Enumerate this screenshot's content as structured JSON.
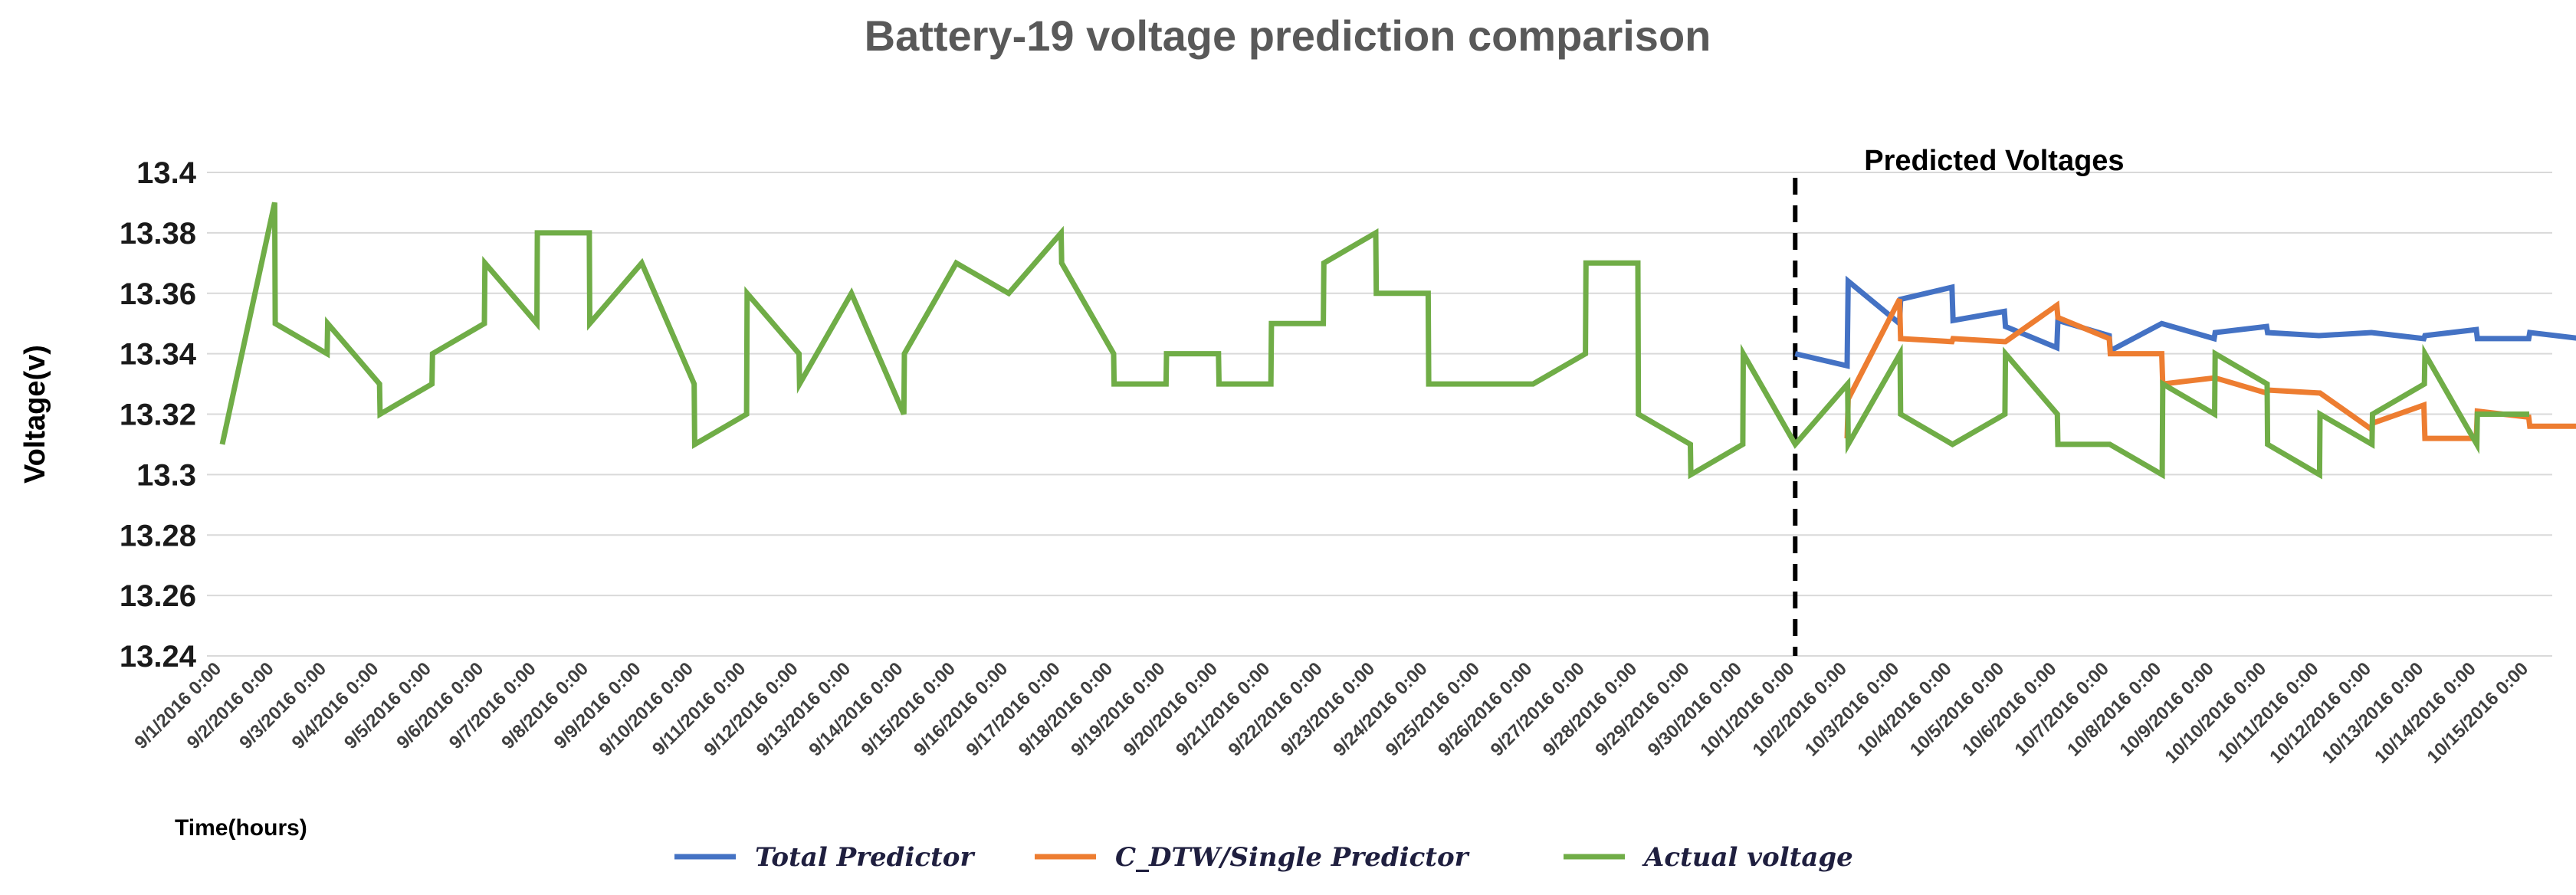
{
  "chart_data": {
    "type": "line",
    "title": "Battery-19 voltage prediction comparison",
    "ylabel": "Voltage(v)",
    "xlabel": "Time(hours)",
    "ylim": [
      13.24,
      13.4
    ],
    "yticks": [
      13.24,
      13.26,
      13.28,
      13.3,
      13.32,
      13.34,
      13.36,
      13.38,
      13.4
    ],
    "grid": true,
    "legend_position": "bottom",
    "annotation": {
      "text": "Predicted Voltages",
      "divider_x": 30
    },
    "x_tick_labels": [
      "9/1/2016 0:00",
      "9/2/2016 0:00",
      "9/3/2016 0:00",
      "9/4/2016 0:00",
      "9/5/2016 0:00",
      "9/6/2016 0:00",
      "9/7/2016 0:00",
      "9/8/2016 0:00",
      "9/9/2016 0:00",
      "9/10/2016 0:00",
      "9/11/2016 0:00",
      "9/12/2016 0:00",
      "9/13/2016 0:00",
      "9/14/2016 0:00",
      "9/15/2016 0:00",
      "9/16/2016 0:00",
      "9/17/2016 0:00",
      "9/18/2016 0:00",
      "9/19/2016 0:00",
      "9/20/2016 0:00",
      "9/21/2016 0:00",
      "9/22/2016 0:00",
      "9/23/2016 0:00",
      "9/24/2016 0:00",
      "9/25/2016 0:00",
      "9/26/2016 0:00",
      "9/27/2016 0:00",
      "9/28/2016 0:00",
      "9/29/2016 0:00",
      "9/30/2016 0:00",
      "10/1/2016 0:00",
      "10/2/2016 0:00",
      "10/3/2016 0:00",
      "10/4/2016 0:00",
      "10/5/2016 0:00",
      "10/6/2016 0:00",
      "10/7/2016 0:00",
      "10/8/2016 0:00",
      "10/9/2016 0:00",
      "10/10/2016 0:00",
      "10/11/2016 0:00",
      "10/12/2016 0:00",
      "10/13/2016 0:00",
      "10/14/2016 0:00",
      "10/15/2016 0:00"
    ],
    "series": [
      {
        "name": "Total Predictor",
        "color": "#4472c4",
        "points": [
          [
            30,
            13.34
          ],
          [
            30.99,
            13.336
          ],
          [
            31.01,
            13.364
          ],
          [
            31.99,
            13.35
          ],
          [
            32.01,
            13.358
          ],
          [
            32.99,
            13.362
          ],
          [
            33.01,
            13.351
          ],
          [
            33.99,
            13.354
          ],
          [
            34.01,
            13.349
          ],
          [
            34.99,
            13.342
          ],
          [
            35.01,
            13.351
          ],
          [
            35.99,
            13.346
          ],
          [
            36.01,
            13.341
          ],
          [
            36.99,
            13.35
          ],
          [
            37.99,
            13.345
          ],
          [
            38.01,
            13.347
          ],
          [
            38.99,
            13.349
          ],
          [
            39.01,
            13.347
          ],
          [
            39.99,
            13.346
          ],
          [
            40.99,
            13.347
          ],
          [
            41.99,
            13.345
          ],
          [
            42.01,
            13.346
          ],
          [
            42.99,
            13.348
          ],
          [
            43.01,
            13.345
          ],
          [
            43.99,
            13.345
          ],
          [
            44.01,
            13.347
          ],
          [
            44.99,
            13.345
          ],
          [
            45.01,
            13.346
          ]
        ]
      },
      {
        "name": "C_DTW/Single Predictor",
        "color": "#ed7d31",
        "points": [
          [
            30.99,
            13.312
          ],
          [
            31.01,
            13.325
          ],
          [
            31.99,
            13.358
          ],
          [
            32.01,
            13.345
          ],
          [
            32.99,
            13.344
          ],
          [
            33.01,
            13.345
          ],
          [
            33.99,
            13.344
          ],
          [
            34.01,
            13.344
          ],
          [
            34.99,
            13.356
          ],
          [
            35.01,
            13.352
          ],
          [
            35.99,
            13.345
          ],
          [
            36.01,
            13.34
          ],
          [
            36.99,
            13.34
          ],
          [
            37.01,
            13.33
          ],
          [
            37.99,
            13.332
          ],
          [
            38.01,
            13.332
          ],
          [
            38.99,
            13.327
          ],
          [
            39.01,
            13.328
          ],
          [
            39.99,
            13.327
          ],
          [
            40.01,
            13.327
          ],
          [
            40.99,
            13.315
          ],
          [
            41.01,
            13.317
          ],
          [
            41.99,
            13.323
          ],
          [
            42.01,
            13.312
          ],
          [
            42.99,
            13.312
          ],
          [
            43.01,
            13.321
          ],
          [
            43.99,
            13.319
          ],
          [
            44.01,
            13.316
          ],
          [
            44.99,
            13.316
          ],
          [
            45.01,
            13.312
          ]
        ]
      },
      {
        "name": "Actual voltage",
        "color": "#70ad47",
        "points": [
          [
            0,
            13.31
          ],
          [
            1,
            13.39
          ],
          [
            1.01,
            13.35
          ],
          [
            2,
            13.34
          ],
          [
            2.01,
            13.35
          ],
          [
            3,
            13.33
          ],
          [
            3.01,
            13.32
          ],
          [
            4,
            13.33
          ],
          [
            4.01,
            13.34
          ],
          [
            5,
            13.35
          ],
          [
            5.01,
            13.37
          ],
          [
            6,
            13.35
          ],
          [
            6.01,
            13.38
          ],
          [
            7,
            13.38
          ],
          [
            7.01,
            13.35
          ],
          [
            8,
            13.37
          ],
          [
            9,
            13.33
          ],
          [
            9.01,
            13.31
          ],
          [
            10,
            13.32
          ],
          [
            10.01,
            13.36
          ],
          [
            11,
            13.34
          ],
          [
            11.01,
            13.33
          ],
          [
            12,
            13.36
          ],
          [
            13,
            13.32
          ],
          [
            13.01,
            13.34
          ],
          [
            14,
            13.37
          ],
          [
            15,
            13.36
          ],
          [
            16,
            13.38
          ],
          [
            16.01,
            13.37
          ],
          [
            17,
            13.34
          ],
          [
            17.01,
            13.33
          ],
          [
            18,
            13.33
          ],
          [
            18.01,
            13.34
          ],
          [
            19,
            13.34
          ],
          [
            19.01,
            13.33
          ],
          [
            20,
            13.33
          ],
          [
            20.01,
            13.35
          ],
          [
            21,
            13.35
          ],
          [
            21.01,
            13.37
          ],
          [
            22,
            13.38
          ],
          [
            22.01,
            13.36
          ],
          [
            23,
            13.36
          ],
          [
            23.01,
            13.33
          ],
          [
            25,
            13.33
          ],
          [
            26,
            13.34
          ],
          [
            26.01,
            13.37
          ],
          [
            27,
            13.37
          ],
          [
            27.01,
            13.32
          ],
          [
            28,
            13.31
          ],
          [
            28.01,
            13.3
          ],
          [
            29,
            13.31
          ],
          [
            29.01,
            13.34
          ],
          [
            30,
            13.31
          ],
          [
            31,
            13.33
          ],
          [
            31.01,
            13.31
          ],
          [
            32,
            13.34
          ],
          [
            32.01,
            13.32
          ],
          [
            33,
            13.31
          ],
          [
            34,
            13.32
          ],
          [
            34.01,
            13.34
          ],
          [
            35,
            13.32
          ],
          [
            35.01,
            13.31
          ],
          [
            36,
            13.31
          ],
          [
            37,
            13.3
          ],
          [
            37.01,
            13.33
          ],
          [
            38,
            13.32
          ],
          [
            38.01,
            13.34
          ],
          [
            39,
            13.33
          ],
          [
            39.01,
            13.31
          ],
          [
            40,
            13.3
          ],
          [
            40.01,
            13.32
          ],
          [
            41,
            13.31
          ],
          [
            41.01,
            13.32
          ],
          [
            42,
            13.33
          ],
          [
            42.01,
            13.34
          ],
          [
            43,
            13.31
          ],
          [
            43.01,
            13.32
          ],
          [
            44,
            13.32
          ]
        ]
      }
    ]
  }
}
